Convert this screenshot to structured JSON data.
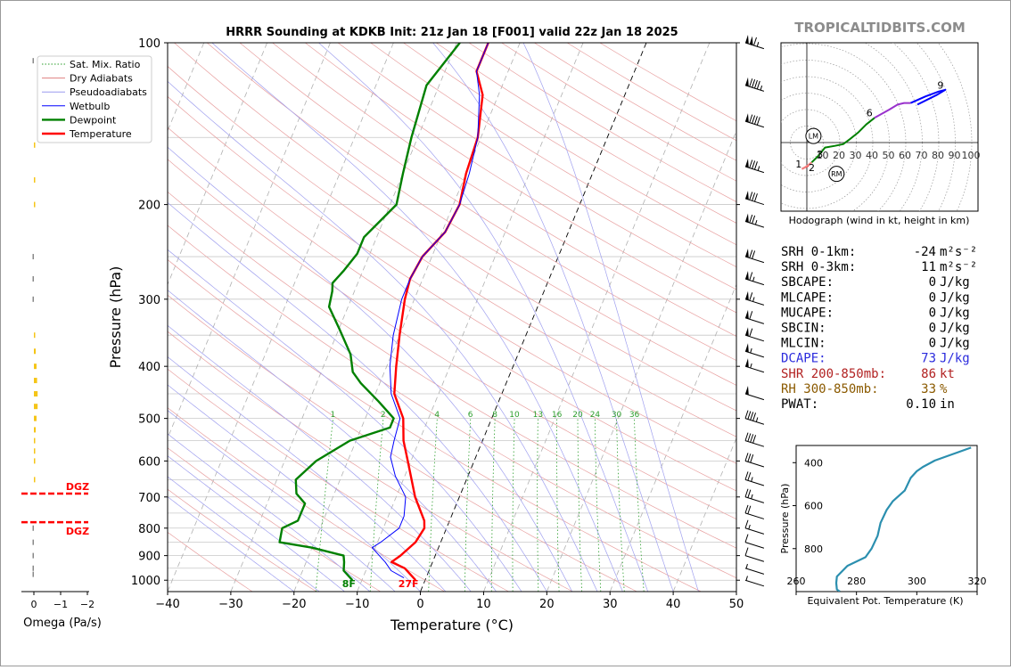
{
  "chart_data": [
    {
      "type": "line",
      "name": "skew-t",
      "title": "HRRR Sounding at KDKB Init: 21z Jan 18 [F001] valid 22z Jan 18 2025",
      "xlabel": "Temperature (°C)",
      "ylabel": "Pressure (hPa)",
      "xlim": [
        -40,
        50
      ],
      "ylim": [
        1050,
        100
      ],
      "yscale": "log",
      "skewed": true,
      "x_ticks": [
        -40,
        -30,
        -20,
        -10,
        0,
        10,
        20,
        30,
        40,
        50
      ],
      "y_ticks": [
        100,
        200,
        300,
        400,
        500,
        600,
        700,
        800,
        900,
        1000
      ],
      "legend": {
        "position": "top-left",
        "entries": [
          {
            "label": "Sat. Mix. Ratio",
            "color": "#2a9d2a",
            "style": "dotted"
          },
          {
            "label": "Dry Adiabats",
            "color": "#e08080",
            "style": "solid"
          },
          {
            "label": "Pseudoadiabats",
            "color": "#9a9aef",
            "style": "solid"
          },
          {
            "label": "Wetbulb",
            "color": "#0000ff",
            "style": "solid"
          },
          {
            "label": "Dewpoint",
            "color": "#008000",
            "style": "solid"
          },
          {
            "label": "Temperature",
            "color": "#ff0000",
            "style": "solid"
          }
        ]
      },
      "mixing_ratio_labels": [
        "1",
        "2",
        "4",
        "6",
        "8",
        "10",
        "13",
        "16",
        "20",
        "24",
        "30",
        "36"
      ],
      "mixing_ratio_values": [
        1,
        2,
        4,
        6,
        8,
        10,
        13,
        16,
        20,
        24,
        30,
        36
      ],
      "series": [
        {
          "name": "Temperature",
          "color": "#ff0000",
          "points": [
            [
              -1.5,
              1000
            ],
            [
              -4,
              950
            ],
            [
              -6.5,
              925
            ],
            [
              -5.5,
              900
            ],
            [
              -4,
              850
            ],
            [
              -3.5,
              800
            ],
            [
              -4,
              775
            ],
            [
              -7,
              700
            ],
            [
              -10.5,
              600
            ],
            [
              -12.5,
              550
            ],
            [
              -14,
              500
            ],
            [
              -17,
              450
            ],
            [
              -18.5,
              400
            ],
            [
              -20,
              350
            ],
            [
              -21.5,
              300
            ],
            [
              -22,
              275
            ],
            [
              -21.5,
              250
            ],
            [
              -19.5,
              225
            ],
            [
              -19,
              200
            ],
            [
              -20,
              175
            ],
            [
              -20.5,
              150
            ],
            [
              -22.5,
              125
            ],
            [
              -25,
              113
            ],
            [
              -25,
              100
            ]
          ]
        },
        {
          "name": "Dewpoint",
          "color": "#008000",
          "points": [
            [
              -11.5,
              1000
            ],
            [
              -13.5,
              960
            ],
            [
              -14,
              925
            ],
            [
              -14.5,
              900
            ],
            [
              -20,
              870
            ],
            [
              -25.5,
              850
            ],
            [
              -26,
              800
            ],
            [
              -24,
              775
            ],
            [
              -24,
              720
            ],
            [
              -26,
              690
            ],
            [
              -27,
              650
            ],
            [
              -25,
              600
            ],
            [
              -21,
              550
            ],
            [
              -15.5,
              520
            ],
            [
              -15.5,
              500
            ],
            [
              -19,
              465
            ],
            [
              -23,
              430
            ],
            [
              -25,
              410
            ],
            [
              -26.5,
              380
            ],
            [
              -30,
              340
            ],
            [
              -33,
              310
            ],
            [
              -33.5,
              290
            ],
            [
              -34,
              280
            ],
            [
              -33,
              265
            ],
            [
              -32,
              247
            ],
            [
              -32,
              230
            ],
            [
              -29,
              200
            ],
            [
              -30,
              175
            ],
            [
              -31,
              150
            ],
            [
              -32,
              120
            ],
            [
              -29.5,
              100
            ]
          ]
        },
        {
          "name": "Wetbulb",
          "color": "#0000ff",
          "points": [
            [
              -3.5,
              990
            ],
            [
              -6,
              960
            ],
            [
              -7.5,
              925
            ],
            [
              -10.5,
              870
            ],
            [
              -9.5,
              850
            ],
            [
              -7.5,
              800
            ],
            [
              -7.5,
              760
            ],
            [
              -8.5,
              700
            ],
            [
              -11.5,
              640
            ],
            [
              -13.5,
              590
            ],
            [
              -14,
              550
            ],
            [
              -14.5,
              500
            ],
            [
              -17.5,
              450
            ],
            [
              -19.5,
              400
            ],
            [
              -21,
              350
            ],
            [
              -22,
              300
            ],
            [
              -22,
              275
            ],
            [
              -21.5,
              250
            ],
            [
              -19.5,
              225
            ],
            [
              -19,
              200
            ],
            [
              -19.5,
              175
            ],
            [
              -20.5,
              150
            ],
            [
              -23,
              125
            ],
            [
              -25,
              113
            ],
            [
              -25,
              100
            ]
          ]
        }
      ],
      "surface_labels": {
        "dewpoint": "8F",
        "temperature": "27F"
      },
      "wind_barbs": [
        {
          "p": 100,
          "kt": 115
        },
        {
          "p": 120,
          "kt": 95
        },
        {
          "p": 140,
          "kt": 90
        },
        {
          "p": 170,
          "kt": 85
        },
        {
          "p": 195,
          "kt": 80
        },
        {
          "p": 215,
          "kt": 75
        },
        {
          "p": 250,
          "kt": 70
        },
        {
          "p": 275,
          "kt": 65
        },
        {
          "p": 300,
          "kt": 65
        },
        {
          "p": 325,
          "kt": 60
        },
        {
          "p": 350,
          "kt": 60
        },
        {
          "p": 375,
          "kt": 55
        },
        {
          "p": 400,
          "kt": 55
        },
        {
          "p": 450,
          "kt": 50
        },
        {
          "p": 500,
          "kt": 45
        },
        {
          "p": 550,
          "kt": 40
        },
        {
          "p": 600,
          "kt": 30
        },
        {
          "p": 650,
          "kt": 25
        },
        {
          "p": 700,
          "kt": 25
        },
        {
          "p": 750,
          "kt": 20
        },
        {
          "p": 800,
          "kt": 15
        },
        {
          "p": 850,
          "kt": 10
        },
        {
          "p": 900,
          "kt": 10
        },
        {
          "p": 950,
          "kt": 5
        },
        {
          "p": 1000,
          "kt": 5
        }
      ]
    },
    {
      "type": "bar",
      "name": "omega",
      "xlabel": "Omega (Pa/s)",
      "x_ticks": [
        "0",
        "−1",
        "−2"
      ],
      "x_tick_values": [
        0,
        -1,
        -2
      ],
      "dgz_label": "DGZ",
      "dgz_bounds_hpa": [
        690,
        780
      ],
      "bars": [
        {
          "p": 108,
          "v": 0.02
        },
        {
          "p": 155,
          "v": -0.05
        },
        {
          "p": 180,
          "v": -0.04
        },
        {
          "p": 200,
          "v": -0.03
        },
        {
          "p": 250,
          "v": 0.02
        },
        {
          "p": 275,
          "v": 0.02
        },
        {
          "p": 300,
          "v": 0.02
        },
        {
          "p": 350,
          "v": -0.05
        },
        {
          "p": 375,
          "v": -0.07
        },
        {
          "p": 400,
          "v": -0.1
        },
        {
          "p": 425,
          "v": -0.12
        },
        {
          "p": 450,
          "v": -0.14
        },
        {
          "p": 475,
          "v": -0.14
        },
        {
          "p": 500,
          "v": -0.1
        },
        {
          "p": 525,
          "v": -0.07
        },
        {
          "p": 550,
          "v": -0.04
        },
        {
          "p": 575,
          "v": -0.02
        },
        {
          "p": 600,
          "v": -0.02
        },
        {
          "p": 650,
          "v": -0.01
        },
        {
          "p": 800,
          "v": 0.01
        },
        {
          "p": 850,
          "v": 0.02
        },
        {
          "p": 900,
          "v": 0.02
        },
        {
          "p": 950,
          "v": 0.03
        },
        {
          "p": 975,
          "v": 0.03
        }
      ]
    },
    {
      "type": "line",
      "name": "hodograph",
      "caption": "Hodograph (wind in kt, height in km)",
      "rings": [
        "10",
        "20",
        "30",
        "40",
        "50",
        "60",
        "70",
        "80",
        "90",
        "100"
      ],
      "ring_values": [
        10,
        20,
        30,
        40,
        50,
        60,
        70,
        80,
        90,
        100
      ],
      "markers": [
        "LM",
        "RM"
      ],
      "height_labels": [
        "1",
        "2",
        "3",
        "6",
        "9"
      ],
      "segments": [
        {
          "color": "#ff0000",
          "points": [
            [
              1,
              -14
            ],
            [
              -3,
              -16
            ]
          ]
        },
        {
          "color": "#f08080",
          "points": [
            [
              -3,
              -16
            ],
            [
              -1,
              -15
            ],
            [
              3,
              -12
            ]
          ]
        },
        {
          "color": "#008000",
          "points": [
            [
              3,
              -12
            ],
            [
              7,
              -8
            ],
            [
              11,
              -3
            ],
            [
              17,
              -2
            ],
            [
              22,
              -1
            ],
            [
              26,
              2
            ],
            [
              31,
              6
            ],
            [
              36,
              11
            ],
            [
              41,
              15
            ]
          ]
        },
        {
          "color": "#9932cc",
          "points": [
            [
              41,
              15
            ],
            [
              50,
              20
            ],
            [
              55,
              23
            ],
            [
              59,
              24
            ],
            [
              63,
              24
            ]
          ]
        },
        {
          "color": "#0000ff",
          "points": [
            [
              63,
              24
            ],
            [
              72,
              28
            ],
            [
              80,
              31
            ],
            [
              84,
              32
            ],
            [
              79,
              29
            ],
            [
              67,
              23
            ]
          ]
        }
      ],
      "label_points": {
        "1": [
          -5,
          -13
        ],
        "2": [
          3,
          -15
        ],
        "3": [
          8,
          -7
        ],
        "6": [
          38,
          18
        ],
        "9": [
          81,
          35
        ]
      },
      "lm_point": [
        4,
        4
      ],
      "rm_point": [
        18,
        -19
      ]
    },
    {
      "type": "line",
      "name": "theta-e",
      "xlabel": "Equivalent Pot. Temperature (K)",
      "ylabel": "Pressure (hPa)",
      "x_ticks": [
        "260",
        "280",
        "300",
        "320"
      ],
      "x_tick_values": [
        260,
        280,
        300,
        320
      ],
      "y_ticks": [
        "400",
        "600",
        "800"
      ],
      "y_tick_values": [
        400,
        600,
        800
      ],
      "xlim": [
        260,
        320
      ],
      "ylim": [
        1000,
        320
      ],
      "color": "#2b8faf",
      "points": [
        [
          274.5,
          1000
        ],
        [
          273.5,
          990
        ],
        [
          273.3,
          960
        ],
        [
          273.5,
          930
        ],
        [
          277,
          880
        ],
        [
          283,
          840
        ],
        [
          285,
          800
        ],
        [
          287,
          740
        ],
        [
          288,
          680
        ],
        [
          290,
          620
        ],
        [
          292,
          580
        ],
        [
          296,
          530
        ],
        [
          298,
          470
        ],
        [
          300,
          440
        ],
        [
          302,
          420
        ],
        [
          306,
          390
        ],
        [
          312,
          360
        ],
        [
          318,
          330
        ]
      ]
    }
  ],
  "watermark": "TROPICALTIDBITS.COM",
  "indices": [
    {
      "label": "SRH 0-1km:",
      "value": "-24",
      "unit": "m²s⁻²",
      "color": "#000000"
    },
    {
      "label": "SRH 0-3km:",
      "value": "11",
      "unit": "m²s⁻²",
      "color": "#000000"
    },
    {
      "label": "SBCAPE:",
      "value": "0",
      "unit": "J/kg",
      "color": "#000000"
    },
    {
      "label": "MLCAPE:",
      "value": "0",
      "unit": "J/kg",
      "color": "#000000"
    },
    {
      "label": "MUCAPE:",
      "value": "0",
      "unit": "J/kg",
      "color": "#000000"
    },
    {
      "label": "SBCIN:",
      "value": "0",
      "unit": "J/kg",
      "color": "#000000"
    },
    {
      "label": "MLCIN:",
      "value": "0",
      "unit": "J/kg",
      "color": "#000000"
    },
    {
      "label": "DCAPE:",
      "value": "73",
      "unit": "J/kg",
      "color": "#2b2bdd"
    },
    {
      "label": "SHR 200-850mb:",
      "value": "86",
      "unit": "kt",
      "color": "#b22222"
    },
    {
      "label": "RH 300-850mb:",
      "value": "33",
      "unit": "%",
      "color": "#8b5a00"
    },
    {
      "label": "PWAT:",
      "value": "0.10",
      "unit": "in",
      "color": "#000000"
    }
  ]
}
